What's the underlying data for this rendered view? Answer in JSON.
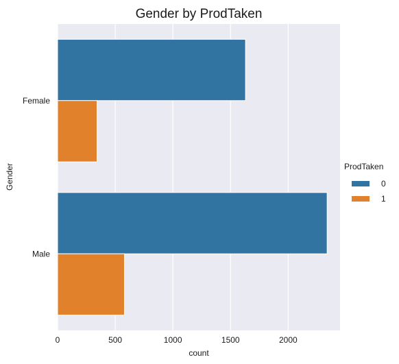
{
  "chart_data": {
    "type": "bar",
    "orientation": "horizontal",
    "title": "Gender by ProdTaken",
    "xlabel": "count",
    "ylabel": "Gender",
    "categories": [
      "Female",
      "Male"
    ],
    "series": [
      {
        "name": "0",
        "values": [
          1630,
          2338
        ],
        "color": "#3274a1"
      },
      {
        "name": "1",
        "values": [
          342,
          580
        ],
        "color": "#e1812c"
      }
    ],
    "xlim": [
      0,
      2450
    ],
    "xticks": [
      0,
      500,
      1000,
      1500,
      2000
    ],
    "xtick_labels": [
      "0",
      "500",
      "1000",
      "1500",
      "2000"
    ],
    "grid": true,
    "legend": {
      "title": "ProdTaken",
      "placement": "right"
    }
  }
}
